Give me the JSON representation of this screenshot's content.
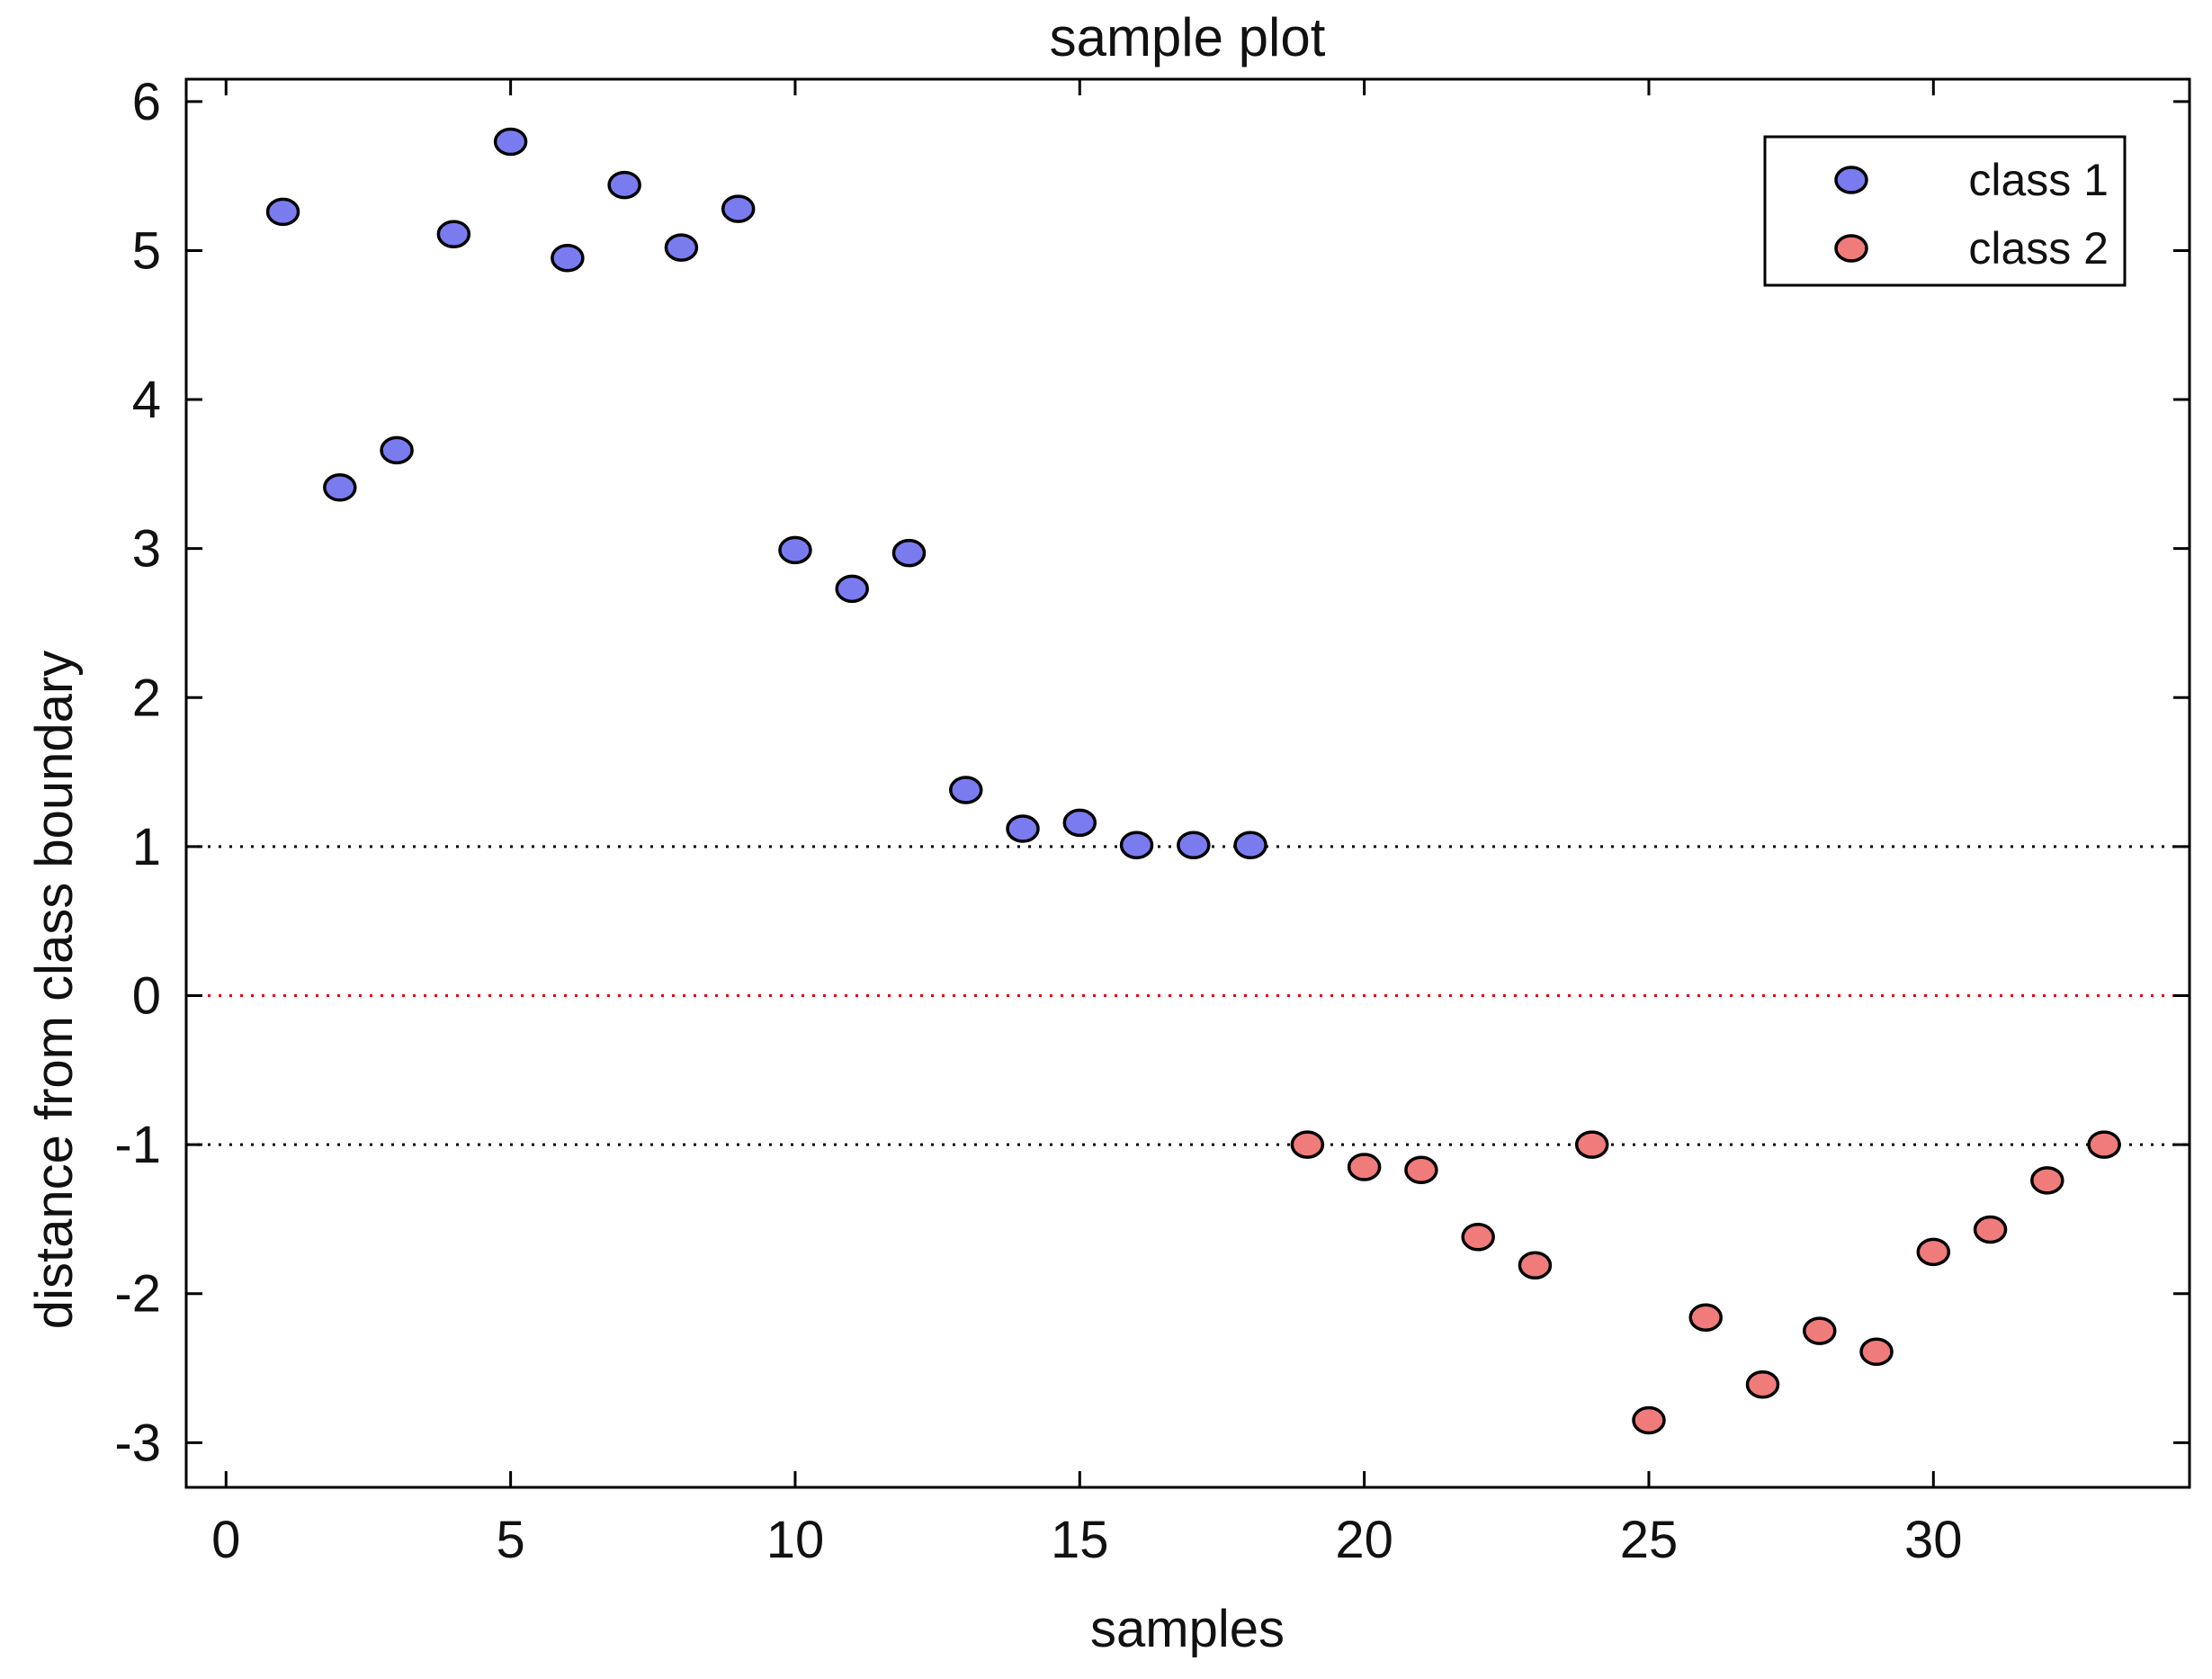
{
  "chart_data": {
    "type": "scatter",
    "title": "sample plot",
    "xlabel": "samples",
    "ylabel": "distance from class boundary",
    "xlim": [
      -0.7,
      34.5
    ],
    "ylim": [
      -3.3,
      6.15
    ],
    "xticks": [
      0,
      5,
      10,
      15,
      20,
      25,
      30
    ],
    "yticks": [
      6,
      5,
      4,
      3,
      2,
      1,
      0,
      -1,
      -2,
      -3
    ],
    "grid": false,
    "legend_position": "top-right",
    "reference_lines": [
      {
        "y": 1,
        "style": "dotted",
        "color": "#000000"
      },
      {
        "y": 0,
        "style": "dotted",
        "color": "#e8000b"
      },
      {
        "y": -1,
        "style": "dotted",
        "color": "#000000"
      }
    ],
    "series": [
      {
        "name": "class 1",
        "color": "#7b7bf0",
        "x": [
          1,
          2,
          3,
          4,
          5,
          6,
          7,
          8,
          9,
          10,
          11,
          12,
          13,
          14,
          15,
          16,
          17,
          18
        ],
        "values": [
          5.26,
          3.41,
          3.66,
          5.11,
          5.73,
          4.95,
          5.44,
          5.02,
          5.28,
          2.99,
          2.73,
          2.97,
          1.38,
          1.12,
          1.16,
          1.01,
          1.01,
          1.01
        ]
      },
      {
        "name": "class 2",
        "color": "#f07b7b",
        "x": [
          19,
          20,
          21,
          22,
          23,
          24,
          25,
          26,
          27,
          28,
          29,
          30,
          31,
          32,
          33
        ],
        "values": [
          -1.0,
          -1.15,
          -1.17,
          -1.62,
          -1.81,
          -1.0,
          -2.85,
          -2.16,
          -2.61,
          -2.25,
          -2.39,
          -1.72,
          -1.57,
          -1.24,
          -1.0
        ]
      }
    ]
  }
}
